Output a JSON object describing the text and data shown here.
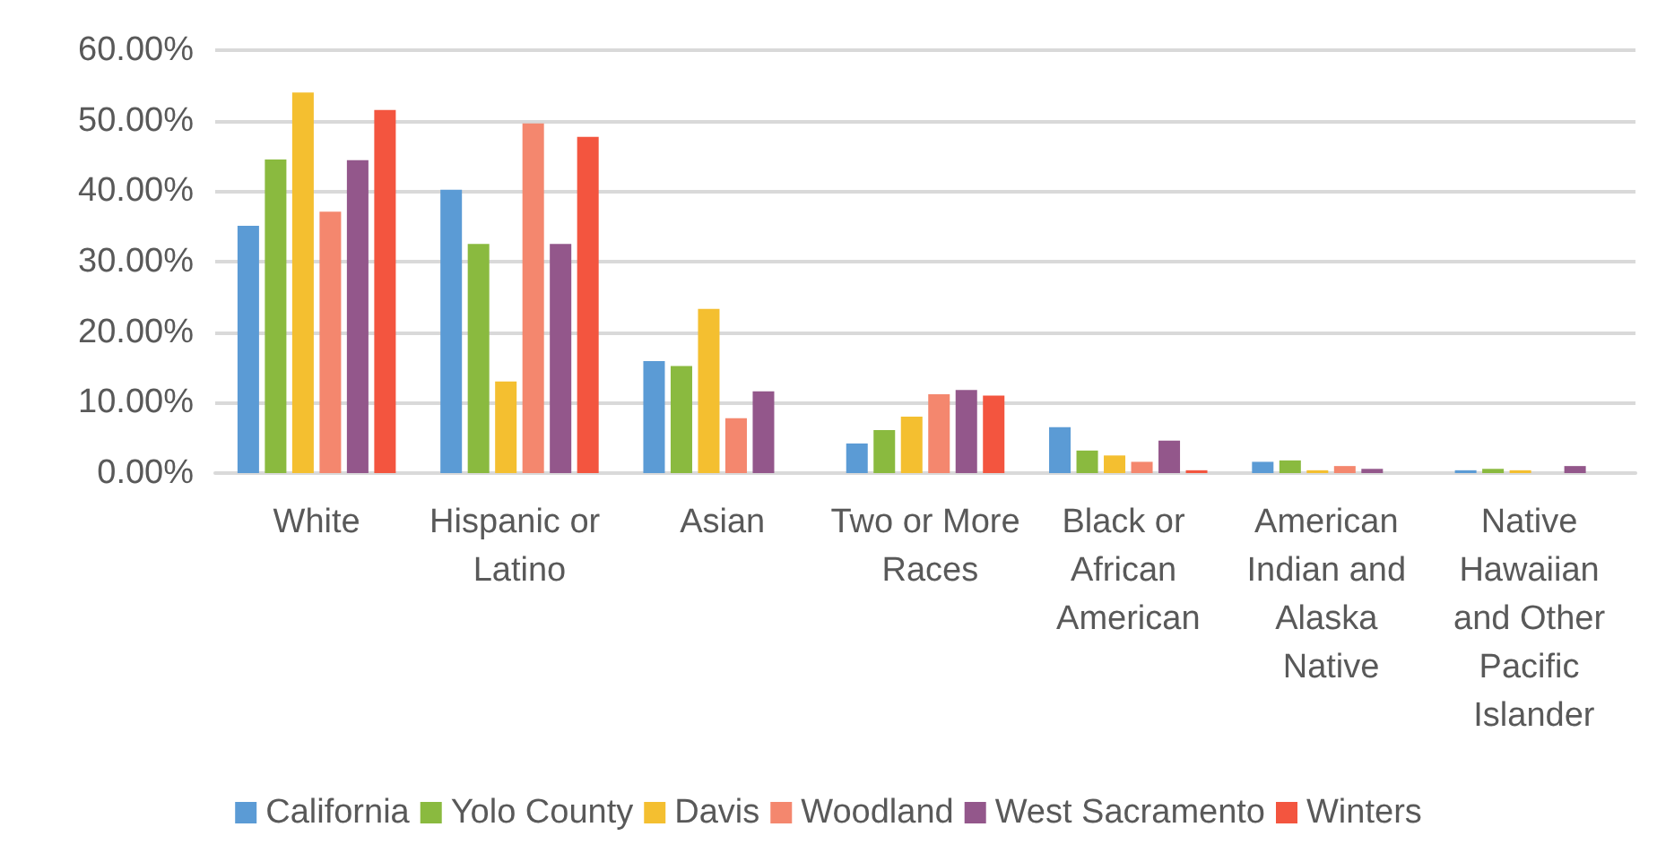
{
  "chart_data": {
    "type": "bar",
    "categories": [
      "White",
      "Hispanic or Latino",
      "Asian",
      "Two or More Races",
      "Black or African American",
      "American Indian and Alaska Native",
      "Native Hawaiian and Other Pacific Islander"
    ],
    "series": [
      {
        "name": "California",
        "color": "#5b9bd5",
        "values": [
          35.1,
          40.2,
          15.9,
          4.2,
          6.5,
          1.6,
          0.4
        ]
      },
      {
        "name": "Yolo County",
        "color": "#8aba3f",
        "values": [
          44.5,
          32.5,
          15.2,
          6.1,
          3.2,
          1.8,
          0.6
        ]
      },
      {
        "name": "Davis",
        "color": "#f4bf30",
        "values": [
          54.0,
          13.0,
          23.3,
          8.0,
          2.5,
          0.4,
          0.4
        ]
      },
      {
        "name": "Woodland",
        "color": "#f4876e",
        "values": [
          37.1,
          49.6,
          7.8,
          11.2,
          1.6,
          1.0,
          0
        ]
      },
      {
        "name": "West Sacramento",
        "color": "#93578b",
        "values": [
          44.4,
          32.5,
          11.6,
          11.8,
          4.6,
          0.6,
          1.0
        ]
      },
      {
        "name": "Winters",
        "color": "#f3553f",
        "values": [
          51.5,
          47.7,
          0,
          11.0,
          0.4,
          0,
          0
        ]
      }
    ],
    "ylim": [
      0,
      60
    ],
    "yticks": [
      {
        "value": 0,
        "label": "0.00%"
      },
      {
        "value": 10,
        "label": "10.00%"
      },
      {
        "value": 20,
        "label": "20.00%"
      },
      {
        "value": 30,
        "label": "30.00%"
      },
      {
        "value": 40,
        "label": "40.00%"
      },
      {
        "value": 50,
        "label": "50.00%"
      },
      {
        "value": 60,
        "label": "60.00%"
      }
    ],
    "grid": "y",
    "legend": "bottom"
  }
}
